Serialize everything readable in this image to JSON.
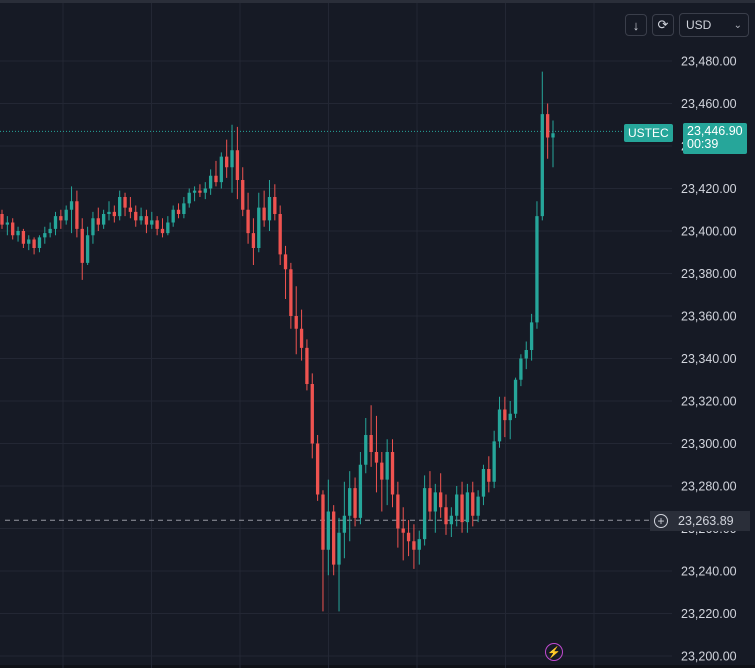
{
  "toolbar": {
    "download_icon": "arrow-down-icon",
    "reload_icon": "refresh-icon",
    "currency": "USD"
  },
  "price_tag": {
    "symbol": "USTEC",
    "price": "23,446.90",
    "countdown": "00:39",
    "color": "#26a69a"
  },
  "crosshair": {
    "price": "23,263.89",
    "icon": "plus-circle-icon"
  },
  "bolt_icon": "lightning-icon",
  "colors": {
    "up": "#26a69a",
    "down": "#ef5350",
    "background": "#161a25",
    "grid": "#232734",
    "axis_text": "#d1d4dc"
  },
  "chart_data": {
    "type": "candlestick",
    "symbol": "USTEC",
    "currency": "USD",
    "ylim": [
      23200,
      23480
    ],
    "yticks": [
      "23,480.00",
      "23,460.00",
      "23,440.00",
      "23,420.00",
      "23,400.00",
      "23,380.00",
      "23,360.00",
      "23,340.00",
      "23,320.00",
      "23,300.00",
      "23,280.00",
      "23,260.00",
      "23,240.00",
      "23,220.00",
      "23,200.00"
    ],
    "ytick_values": [
      23480,
      23460,
      23440,
      23420,
      23400,
      23380,
      23360,
      23340,
      23320,
      23300,
      23280,
      23260,
      23240,
      23220,
      23200
    ],
    "last_price": 23446.9,
    "crosshair_price": 23263.89,
    "grid": true,
    "candles": [
      [
        23408,
        23410,
        23401,
        23403
      ],
      [
        23403,
        23407,
        23398,
        23404
      ],
      [
        23404,
        23406,
        23396,
        23398
      ],
      [
        23398,
        23402,
        23395,
        23400
      ],
      [
        23400,
        23401,
        23392,
        23394
      ],
      [
        23394,
        23398,
        23391,
        23396
      ],
      [
        23396,
        23397,
        23389,
        23392
      ],
      [
        23392,
        23398,
        23390,
        23397
      ],
      [
        23397,
        23402,
        23394,
        23399
      ],
      [
        23399,
        23404,
        23397,
        23401
      ],
      [
        23401,
        23409,
        23398,
        23407
      ],
      [
        23407,
        23410,
        23401,
        23405
      ],
      [
        23405,
        23412,
        23403,
        23410
      ],
      [
        23410,
        23421,
        23399,
        23414
      ],
      [
        23414,
        23419,
        23397,
        23401
      ],
      [
        23401,
        23406,
        23377,
        23385
      ],
      [
        23385,
        23402,
        23384,
        23398
      ],
      [
        23398,
        23409,
        23394,
        23406
      ],
      [
        23406,
        23411,
        23400,
        23403
      ],
      [
        23403,
        23410,
        23401,
        23408
      ],
      [
        23408,
        23414,
        23405,
        23409
      ],
      [
        23409,
        23412,
        23404,
        23407
      ],
      [
        23407,
        23419,
        23405,
        23416
      ],
      [
        23416,
        23418,
        23407,
        23411
      ],
      [
        23411,
        23416,
        23406,
        23409
      ],
      [
        23409,
        23412,
        23402,
        23405
      ],
      [
        23405,
        23411,
        23403,
        23407
      ],
      [
        23407,
        23410,
        23399,
        23403
      ],
      [
        23403,
        23409,
        23401,
        23405
      ],
      [
        23405,
        23407,
        23398,
        23401
      ],
      [
        23401,
        23406,
        23397,
        23399
      ],
      [
        23399,
        23407,
        23398,
        23404
      ],
      [
        23404,
        23412,
        23402,
        23410
      ],
      [
        23410,
        23413,
        23406,
        23408
      ],
      [
        23408,
        23416,
        23406,
        23413
      ],
      [
        23413,
        23420,
        23411,
        23418
      ],
      [
        23418,
        23421,
        23414,
        23419
      ],
      [
        23419,
        23422,
        23416,
        23418
      ],
      [
        23418,
        23423,
        23415,
        23420
      ],
      [
        23420,
        23429,
        23417,
        23426
      ],
      [
        23426,
        23433,
        23421,
        23423
      ],
      [
        23423,
        23437,
        23420,
        23435
      ],
      [
        23435,
        23443,
        23425,
        23430
      ],
      [
        23430,
        23450,
        23418,
        23438
      ],
      [
        23438,
        23449,
        23415,
        23424
      ],
      [
        23424,
        23430,
        23407,
        23410
      ],
      [
        23410,
        23418,
        23394,
        23399
      ],
      [
        23399,
        23406,
        23384,
        23392
      ],
      [
        23392,
        23418,
        23390,
        23411
      ],
      [
        23411,
        23419,
        23402,
        23405
      ],
      [
        23405,
        23424,
        23400,
        23416
      ],
      [
        23416,
        23422,
        23405,
        23408
      ],
      [
        23408,
        23412,
        23384,
        23389
      ],
      [
        23389,
        23393,
        23368,
        23382
      ],
      [
        23382,
        23385,
        23354,
        23360
      ],
      [
        23360,
        23374,
        23342,
        23354
      ],
      [
        23354,
        23363,
        23339,
        23345
      ],
      [
        23345,
        23349,
        23325,
        23328
      ],
      [
        23328,
        23333,
        23293,
        23300
      ],
      [
        23300,
        23304,
        23273,
        23276
      ],
      [
        23276,
        23278,
        23221,
        23250
      ],
      [
        23250,
        23283,
        23238,
        23268
      ],
      [
        23268,
        23271,
        23238,
        23243
      ],
      [
        23243,
        23265,
        23221,
        23258
      ],
      [
        23258,
        23282,
        23246,
        23266
      ],
      [
        23266,
        23287,
        23254,
        23279
      ],
      [
        23279,
        23284,
        23261,
        23265
      ],
      [
        23265,
        23296,
        23262,
        23290
      ],
      [
        23290,
        23312,
        23286,
        23304
      ],
      [
        23304,
        23318,
        23289,
        23296
      ],
      [
        23296,
        23313,
        23277,
        23291
      ],
      [
        23291,
        23296,
        23268,
        23283
      ],
      [
        23283,
        23302,
        23271,
        23296
      ],
      [
        23296,
        23302,
        23270,
        23276
      ],
      [
        23276,
        23282,
        23251,
        23260
      ],
      [
        23260,
        23270,
        23245,
        23258
      ],
      [
        23258,
        23264,
        23247,
        23254
      ],
      [
        23254,
        23262,
        23241,
        23250
      ],
      [
        23250,
        23259,
        23243,
        23255
      ],
      [
        23255,
        23285,
        23252,
        23279
      ],
      [
        23279,
        23287,
        23264,
        23268
      ],
      [
        23268,
        23281,
        23258,
        23277
      ],
      [
        23277,
        23286,
        23265,
        23270
      ],
      [
        23270,
        23276,
        23257,
        23262
      ],
      [
        23262,
        23270,
        23256,
        23266
      ],
      [
        23266,
        23280,
        23261,
        23276
      ],
      [
        23276,
        23282,
        23258,
        23263
      ],
      [
        23263,
        23281,
        23258,
        23277
      ],
      [
        23277,
        23282,
        23261,
        23266
      ],
      [
        23266,
        23278,
        23263,
        23275
      ],
      [
        23275,
        23290,
        23271,
        23288
      ],
      [
        23288,
        23294,
        23277,
        23282
      ],
      [
        23282,
        23306,
        23279,
        23301
      ],
      [
        23301,
        23322,
        23298,
        23316
      ],
      [
        23316,
        23322,
        23303,
        23311
      ],
      [
        23311,
        23320,
        23302,
        23314
      ],
      [
        23314,
        23331,
        23312,
        23330
      ],
      [
        23330,
        23342,
        23327,
        23340
      ],
      [
        23340,
        23348,
        23335,
        23344
      ],
      [
        23344,
        23361,
        23339,
        23357
      ],
      [
        23357,
        23414,
        23354,
        23407
      ],
      [
        23407,
        23475,
        23405,
        23455
      ],
      [
        23455,
        23460,
        23434,
        23444
      ],
      [
        23444,
        23452,
        23430,
        23446
      ]
    ]
  }
}
